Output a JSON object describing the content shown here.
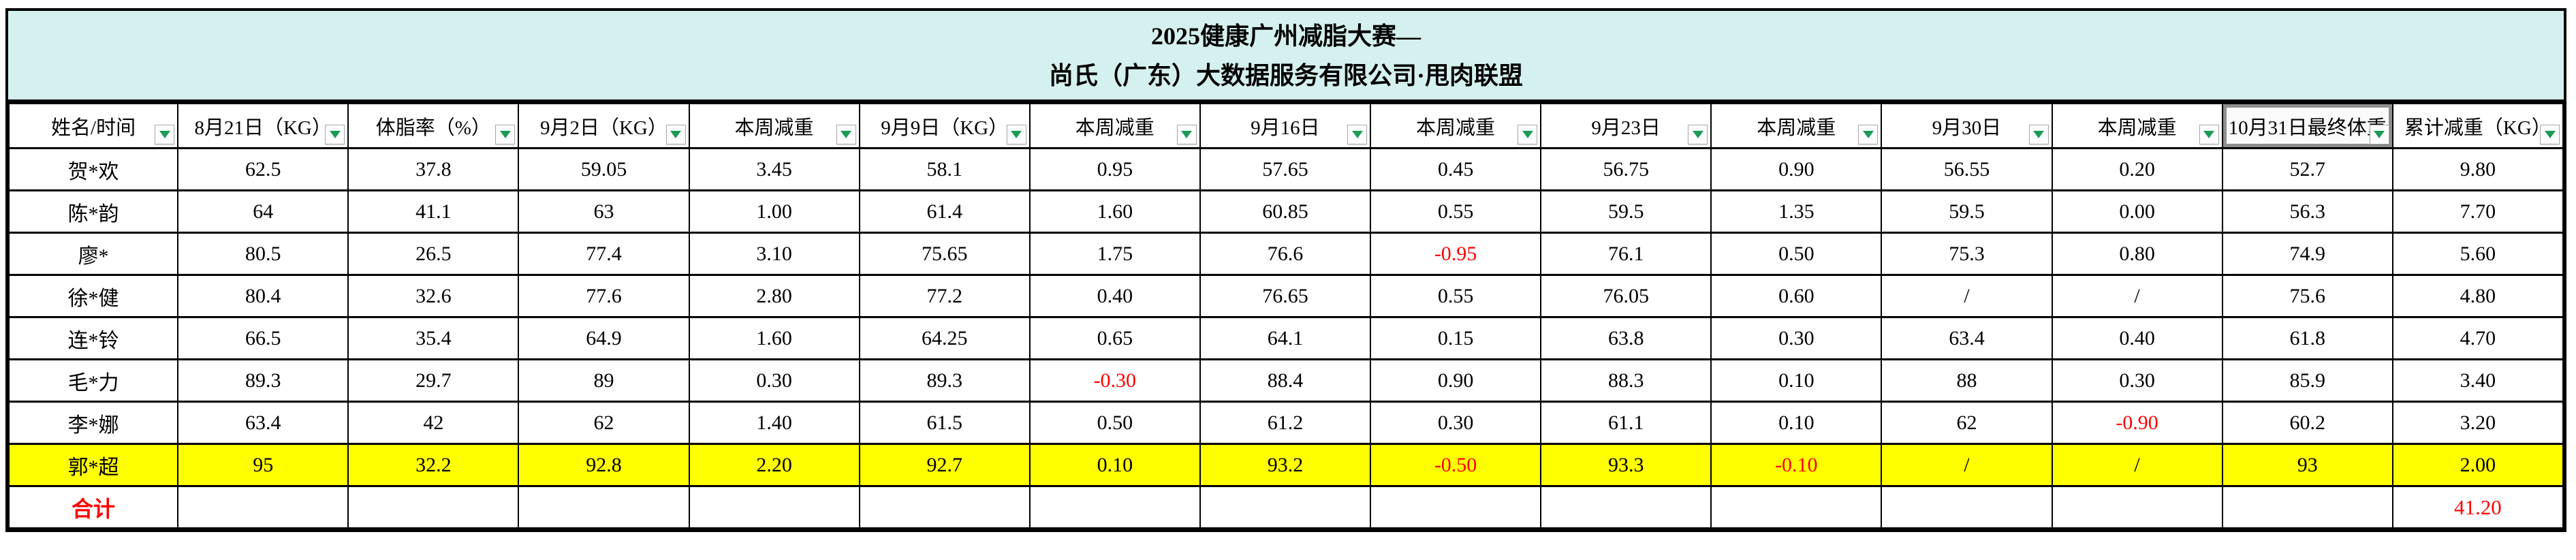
{
  "title": {
    "line1": "2025健康广州减脂大赛—",
    "line2": "尚氏（广东）大数据服务有限公司·甩肉联盟"
  },
  "columns": [
    {
      "label": "姓名/时间",
      "filter": true,
      "selected": false
    },
    {
      "label": "8月21日（KG）",
      "filter": true,
      "selected": false
    },
    {
      "label": "体脂率（%）",
      "filter": true,
      "selected": false
    },
    {
      "label": "9月2日（KG）",
      "filter": true,
      "selected": false
    },
    {
      "label": "本周减重",
      "filter": true,
      "selected": false
    },
    {
      "label": "9月9日（KG）",
      "filter": true,
      "selected": false
    },
    {
      "label": "本周减重",
      "filter": true,
      "selected": false
    },
    {
      "label": "9月16日",
      "filter": true,
      "selected": false
    },
    {
      "label": "本周减重",
      "filter": true,
      "selected": false
    },
    {
      "label": "9月23日",
      "filter": true,
      "selected": false
    },
    {
      "label": "本周减重",
      "filter": true,
      "selected": false
    },
    {
      "label": "9月30日",
      "filter": true,
      "selected": false
    },
    {
      "label": "本周减重",
      "filter": true,
      "selected": false
    },
    {
      "label": "10月31日最终体重",
      "filter": true,
      "selected": true
    },
    {
      "label": "累计减重（KG）",
      "filter": true,
      "selected": false
    }
  ],
  "rows": [
    {
      "name": "贺*欢",
      "highlight": false,
      "values": [
        "62.5",
        "37.8",
        "59.05",
        "3.45",
        "58.1",
        "0.95",
        "57.65",
        "0.45",
        "56.75",
        "0.90",
        "56.55",
        "0.20",
        "52.7",
        "9.80"
      ]
    },
    {
      "name": "陈*韵",
      "highlight": false,
      "values": [
        "64",
        "41.1",
        "63",
        "1.00",
        "61.4",
        "1.60",
        "60.85",
        "0.55",
        "59.5",
        "1.35",
        "59.5",
        "0.00",
        "56.3",
        "7.70"
      ]
    },
    {
      "name": "廖*",
      "highlight": false,
      "values": [
        "80.5",
        "26.5",
        "77.4",
        "3.10",
        "75.65",
        "1.75",
        "76.6",
        "-0.95",
        "76.1",
        "0.50",
        "75.3",
        "0.80",
        "74.9",
        "5.60"
      ]
    },
    {
      "name": "徐*健",
      "highlight": false,
      "values": [
        "80.4",
        "32.6",
        "77.6",
        "2.80",
        "77.2",
        "0.40",
        "76.65",
        "0.55",
        "76.05",
        "0.60",
        "/",
        "/",
        "75.6",
        "4.80"
      ]
    },
    {
      "name": "连*铃",
      "highlight": false,
      "values": [
        "66.5",
        "35.4",
        "64.9",
        "1.60",
        "64.25",
        "0.65",
        "64.1",
        "0.15",
        "63.8",
        "0.30",
        "63.4",
        "0.40",
        "61.8",
        "4.70"
      ]
    },
    {
      "name": "毛*力",
      "highlight": false,
      "values": [
        "89.3",
        "29.7",
        "89",
        "0.30",
        "89.3",
        "-0.30",
        "88.4",
        "0.90",
        "88.3",
        "0.10",
        "88",
        "0.30",
        "85.9",
        "3.40"
      ]
    },
    {
      "name": "李*娜",
      "highlight": false,
      "values": [
        "63.4",
        "42",
        "62",
        "1.40",
        "61.5",
        "0.50",
        "61.2",
        "0.30",
        "61.1",
        "0.10",
        "62",
        "-0.90",
        "60.2",
        "3.20"
      ]
    },
    {
      "name": "郭*超",
      "highlight": true,
      "values": [
        "95",
        "32.2",
        "92.8",
        "2.20",
        "92.7",
        "0.10",
        "93.2",
        "-0.50",
        "93.3",
        "-0.10",
        "/",
        "/",
        "93",
        "2.00"
      ]
    }
  ],
  "total_row": {
    "label": "合计",
    "values": [
      "",
      "",
      "",
      "",
      "",
      "",
      "",
      "",
      "",
      "",
      "",
      "",
      "",
      "41.20"
    ]
  },
  "icons": {
    "filter": "filter-dropdown-triangle"
  },
  "colors": {
    "title_background": "#D5F1EF",
    "highlight_row": "#FFFF00",
    "negative_text": "#FF0000",
    "total_text": "#FF0000",
    "filter_triangle": "#1A9B57",
    "selected_cell_border": "#8F8F8F",
    "grid_border": "#000000"
  }
}
